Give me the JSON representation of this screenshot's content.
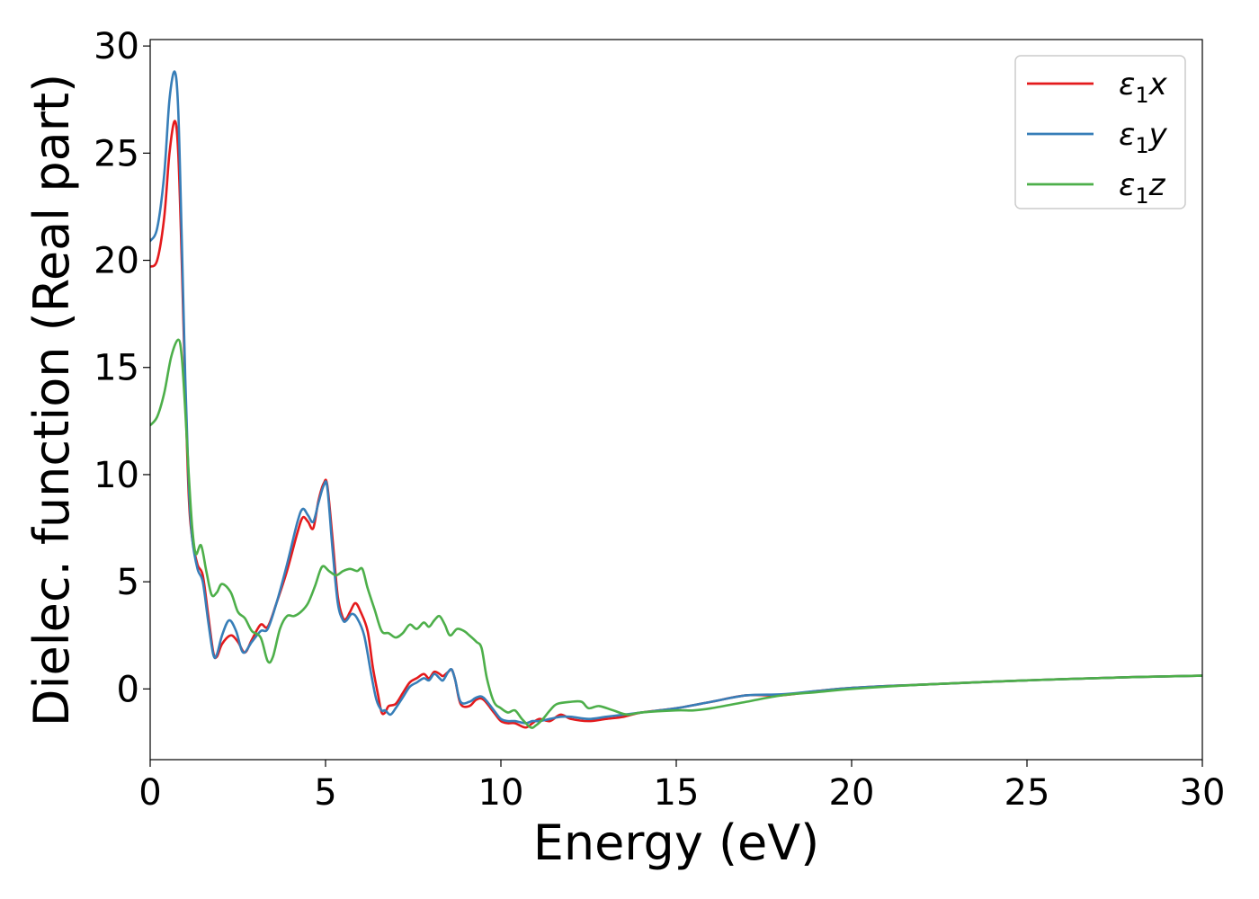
{
  "chart_data": {
    "type": "line",
    "title": "",
    "xlabel": "Energy (eV)",
    "ylabel": "Dielec. function (Real part)",
    "xlim": [
      0,
      30
    ],
    "ylim": [
      -3.3,
      30.3
    ],
    "xticks": [
      0,
      5,
      10,
      15,
      20,
      25,
      30
    ],
    "yticks": [
      0,
      5,
      10,
      15,
      20,
      25,
      30
    ],
    "grid": false,
    "legend_position": "top-right",
    "series": [
      {
        "name": "ε₁x",
        "legend_base": "ε",
        "legend_sub": "1",
        "legend_suffix": "x",
        "color": "#e41a1c",
        "points": [
          [
            0.0,
            19.7
          ],
          [
            0.2,
            20.0
          ],
          [
            0.4,
            22.0
          ],
          [
            0.55,
            25.0
          ],
          [
            0.7,
            26.5
          ],
          [
            0.8,
            25.0
          ],
          [
            0.9,
            20.0
          ],
          [
            1.0,
            14.0
          ],
          [
            1.1,
            9.0
          ],
          [
            1.2,
            7.0
          ],
          [
            1.35,
            5.8
          ],
          [
            1.5,
            5.3
          ],
          [
            1.65,
            3.5
          ],
          [
            1.8,
            1.7
          ],
          [
            1.9,
            1.5
          ],
          [
            2.05,
            2.1
          ],
          [
            2.3,
            2.5
          ],
          [
            2.5,
            2.2
          ],
          [
            2.7,
            1.7
          ],
          [
            2.9,
            2.3
          ],
          [
            3.15,
            3.0
          ],
          [
            3.35,
            2.9
          ],
          [
            3.6,
            4.0
          ],
          [
            3.9,
            5.5
          ],
          [
            4.2,
            7.3
          ],
          [
            4.35,
            8.0
          ],
          [
            4.5,
            7.8
          ],
          [
            4.65,
            7.5
          ],
          [
            4.8,
            8.8
          ],
          [
            4.95,
            9.6
          ],
          [
            5.05,
            9.5
          ],
          [
            5.2,
            7.0
          ],
          [
            5.35,
            4.3
          ],
          [
            5.5,
            3.3
          ],
          [
            5.6,
            3.3
          ],
          [
            5.7,
            3.6
          ],
          [
            5.85,
            4.0
          ],
          [
            6.0,
            3.6
          ],
          [
            6.2,
            2.7
          ],
          [
            6.35,
            1.0
          ],
          [
            6.5,
            -0.3
          ],
          [
            6.6,
            -1.1
          ],
          [
            6.7,
            -1.1
          ],
          [
            6.8,
            -0.8
          ],
          [
            7.0,
            -0.7
          ],
          [
            7.2,
            -0.2
          ],
          [
            7.4,
            0.3
          ],
          [
            7.6,
            0.5
          ],
          [
            7.8,
            0.7
          ],
          [
            7.95,
            0.5
          ],
          [
            8.1,
            0.8
          ],
          [
            8.25,
            0.7
          ],
          [
            8.35,
            0.6
          ],
          [
            8.5,
            0.8
          ],
          [
            8.6,
            0.9
          ],
          [
            8.7,
            0.4
          ],
          [
            8.85,
            -0.7
          ],
          [
            9.1,
            -0.8
          ],
          [
            9.3,
            -0.5
          ],
          [
            9.5,
            -0.5
          ],
          [
            9.8,
            -1.1
          ],
          [
            10.0,
            -1.5
          ],
          [
            10.2,
            -1.6
          ],
          [
            10.4,
            -1.6
          ],
          [
            10.7,
            -1.8
          ],
          [
            10.9,
            -1.6
          ],
          [
            11.1,
            -1.4
          ],
          [
            11.4,
            -1.5
          ],
          [
            11.7,
            -1.2
          ],
          [
            12.0,
            -1.4
          ],
          [
            12.5,
            -1.5
          ],
          [
            13.0,
            -1.4
          ],
          [
            13.5,
            -1.3
          ],
          [
            14.0,
            -1.1
          ],
          [
            15.0,
            -0.9
          ],
          [
            16.0,
            -0.6
          ],
          [
            17.0,
            -0.3
          ],
          [
            18.0,
            -0.3
          ],
          [
            19.0,
            -0.1
          ],
          [
            20.0,
            0.05
          ],
          [
            22.0,
            0.2
          ],
          [
            25.0,
            0.4
          ],
          [
            28.0,
            0.55
          ],
          [
            30.0,
            0.62
          ]
        ]
      },
      {
        "name": "ε₁y",
        "legend_base": "ε",
        "legend_sub": "1",
        "legend_suffix": "y",
        "color": "#377eb8",
        "points": [
          [
            0.0,
            20.9
          ],
          [
            0.2,
            21.5
          ],
          [
            0.4,
            24.0
          ],
          [
            0.55,
            27.5
          ],
          [
            0.7,
            28.8
          ],
          [
            0.8,
            27.0
          ],
          [
            0.9,
            21.0
          ],
          [
            1.0,
            14.5
          ],
          [
            1.1,
            9.5
          ],
          [
            1.2,
            7.0
          ],
          [
            1.35,
            5.6
          ],
          [
            1.5,
            5.0
          ],
          [
            1.65,
            3.2
          ],
          [
            1.8,
            1.6
          ],
          [
            1.9,
            1.6
          ],
          [
            2.05,
            2.5
          ],
          [
            2.25,
            3.2
          ],
          [
            2.45,
            2.7
          ],
          [
            2.65,
            1.7
          ],
          [
            2.9,
            2.2
          ],
          [
            3.15,
            2.7
          ],
          [
            3.35,
            2.8
          ],
          [
            3.6,
            4.0
          ],
          [
            3.9,
            5.8
          ],
          [
            4.2,
            7.8
          ],
          [
            4.35,
            8.4
          ],
          [
            4.5,
            8.1
          ],
          [
            4.65,
            7.8
          ],
          [
            4.8,
            8.7
          ],
          [
            4.95,
            9.5
          ],
          [
            5.05,
            9.4
          ],
          [
            5.2,
            6.5
          ],
          [
            5.35,
            4.0
          ],
          [
            5.5,
            3.2
          ],
          [
            5.6,
            3.2
          ],
          [
            5.75,
            3.5
          ],
          [
            5.9,
            3.3
          ],
          [
            6.1,
            2.5
          ],
          [
            6.3,
            0.7
          ],
          [
            6.45,
            -0.5
          ],
          [
            6.6,
            -1.0
          ],
          [
            6.7,
            -1.0
          ],
          [
            6.85,
            -1.2
          ],
          [
            7.0,
            -0.9
          ],
          [
            7.2,
            -0.4
          ],
          [
            7.4,
            0.1
          ],
          [
            7.6,
            0.3
          ],
          [
            7.8,
            0.5
          ],
          [
            7.95,
            0.4
          ],
          [
            8.1,
            0.7
          ],
          [
            8.25,
            0.5
          ],
          [
            8.35,
            0.4
          ],
          [
            8.5,
            0.8
          ],
          [
            8.6,
            0.9
          ],
          [
            8.7,
            0.4
          ],
          [
            8.85,
            -0.6
          ],
          [
            9.1,
            -0.6
          ],
          [
            9.3,
            -0.4
          ],
          [
            9.5,
            -0.4
          ],
          [
            9.8,
            -1.0
          ],
          [
            10.0,
            -1.4
          ],
          [
            10.2,
            -1.5
          ],
          [
            10.4,
            -1.5
          ],
          [
            10.7,
            -1.6
          ],
          [
            10.9,
            -1.5
          ],
          [
            11.1,
            -1.5
          ],
          [
            11.4,
            -1.4
          ],
          [
            11.7,
            -1.3
          ],
          [
            12.0,
            -1.3
          ],
          [
            12.5,
            -1.4
          ],
          [
            13.0,
            -1.3
          ],
          [
            13.5,
            -1.2
          ],
          [
            14.0,
            -1.1
          ],
          [
            15.0,
            -0.9
          ],
          [
            16.0,
            -0.6
          ],
          [
            17.0,
            -0.3
          ],
          [
            18.0,
            -0.25
          ],
          [
            19.0,
            -0.1
          ],
          [
            20.0,
            0.05
          ],
          [
            22.0,
            0.2
          ],
          [
            25.0,
            0.4
          ],
          [
            28.0,
            0.55
          ],
          [
            30.0,
            0.62
          ]
        ]
      },
      {
        "name": "ε₁z",
        "legend_base": "ε",
        "legend_sub": "1",
        "legend_suffix": "z",
        "color": "#4daf4a",
        "points": [
          [
            0.0,
            12.3
          ],
          [
            0.2,
            12.7
          ],
          [
            0.4,
            13.8
          ],
          [
            0.6,
            15.5
          ],
          [
            0.8,
            16.3
          ],
          [
            0.9,
            15.5
          ],
          [
            1.0,
            13.0
          ],
          [
            1.1,
            10.0
          ],
          [
            1.2,
            7.5
          ],
          [
            1.3,
            6.3
          ],
          [
            1.45,
            6.7
          ],
          [
            1.6,
            5.5
          ],
          [
            1.75,
            4.4
          ],
          [
            1.9,
            4.5
          ],
          [
            2.05,
            4.9
          ],
          [
            2.3,
            4.5
          ],
          [
            2.5,
            3.6
          ],
          [
            2.7,
            3.3
          ],
          [
            2.9,
            2.7
          ],
          [
            3.15,
            2.4
          ],
          [
            3.35,
            1.3
          ],
          [
            3.5,
            1.5
          ],
          [
            3.7,
            2.8
          ],
          [
            3.9,
            3.4
          ],
          [
            4.1,
            3.4
          ],
          [
            4.3,
            3.6
          ],
          [
            4.5,
            4.0
          ],
          [
            4.7,
            4.8
          ],
          [
            4.9,
            5.7
          ],
          [
            5.1,
            5.5
          ],
          [
            5.3,
            5.3
          ],
          [
            5.5,
            5.5
          ],
          [
            5.7,
            5.6
          ],
          [
            5.9,
            5.5
          ],
          [
            6.05,
            5.6
          ],
          [
            6.2,
            4.7
          ],
          [
            6.4,
            3.7
          ],
          [
            6.6,
            2.7
          ],
          [
            6.8,
            2.6
          ],
          [
            7.0,
            2.4
          ],
          [
            7.2,
            2.6
          ],
          [
            7.4,
            3.0
          ],
          [
            7.6,
            2.8
          ],
          [
            7.8,
            3.1
          ],
          [
            7.95,
            2.9
          ],
          [
            8.1,
            3.2
          ],
          [
            8.25,
            3.4
          ],
          [
            8.4,
            3.0
          ],
          [
            8.55,
            2.5
          ],
          [
            8.75,
            2.8
          ],
          [
            8.95,
            2.7
          ],
          [
            9.1,
            2.5
          ],
          [
            9.3,
            2.2
          ],
          [
            9.45,
            1.9
          ],
          [
            9.6,
            0.5
          ],
          [
            9.8,
            -0.6
          ],
          [
            10.0,
            -0.9
          ],
          [
            10.2,
            -1.1
          ],
          [
            10.4,
            -1.0
          ],
          [
            10.6,
            -1.4
          ],
          [
            10.85,
            -1.8
          ],
          [
            11.0,
            -1.7
          ],
          [
            11.2,
            -1.4
          ],
          [
            11.4,
            -1.0
          ],
          [
            11.6,
            -0.7
          ],
          [
            12.0,
            -0.6
          ],
          [
            12.3,
            -0.6
          ],
          [
            12.5,
            -0.9
          ],
          [
            12.8,
            -0.8
          ],
          [
            13.2,
            -1.0
          ],
          [
            13.6,
            -1.2
          ],
          [
            14.0,
            -1.1
          ],
          [
            15.0,
            -1.0
          ],
          [
            15.5,
            -1.0
          ],
          [
            16.0,
            -0.9
          ],
          [
            17.0,
            -0.6
          ],
          [
            18.0,
            -0.3
          ],
          [
            19.0,
            -0.15
          ],
          [
            20.0,
            0.0
          ],
          [
            22.0,
            0.2
          ],
          [
            25.0,
            0.4
          ],
          [
            28.0,
            0.55
          ],
          [
            30.0,
            0.62
          ]
        ]
      }
    ]
  }
}
